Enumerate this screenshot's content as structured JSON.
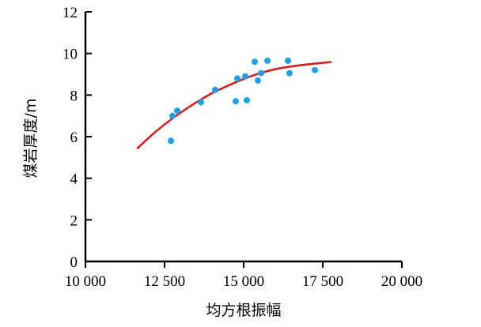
{
  "chart_data": {
    "type": "scatter",
    "title": "",
    "xlabel": "均方根振幅",
    "ylabel": "煤岩厚度/m",
    "xlim": [
      10000,
      20000
    ],
    "ylim": [
      0,
      12
    ],
    "x_ticks": [
      10000,
      12500,
      15000,
      17500,
      20000
    ],
    "x_tick_labels": [
      "10 000",
      "12 500",
      "15 000",
      "17 500",
      "20 000"
    ],
    "y_ticks": [
      0,
      2,
      4,
      6,
      8,
      10,
      12
    ],
    "y_tick_labels": [
      "0",
      "2",
      "4",
      "6",
      "8",
      "10",
      "12"
    ],
    "grid": false,
    "legend": "none",
    "series": [
      {
        "type": "scatter",
        "color": "#1ea0e6",
        "x": [
          12700,
          12750,
          12900,
          13650,
          14100,
          14750,
          14800,
          15050,
          15100,
          15350,
          15450,
          15550,
          15750,
          16400,
          16450,
          17250
        ],
        "y": [
          5.8,
          7.0,
          7.25,
          7.65,
          8.25,
          7.7,
          8.8,
          8.9,
          7.75,
          9.6,
          8.7,
          9.05,
          9.65,
          9.65,
          9.05,
          9.2
        ]
      },
      {
        "type": "line",
        "color": "#d42020",
        "x": [
          11650,
          12000,
          12500,
          13000,
          13500,
          14000,
          14500,
          15000,
          15500,
          16000,
          16500,
          17000,
          17500,
          17750
        ],
        "y": [
          5.45,
          5.95,
          6.6,
          7.15,
          7.65,
          8.1,
          8.45,
          8.78,
          9.05,
          9.25,
          9.38,
          9.47,
          9.55,
          9.58
        ]
      }
    ]
  }
}
